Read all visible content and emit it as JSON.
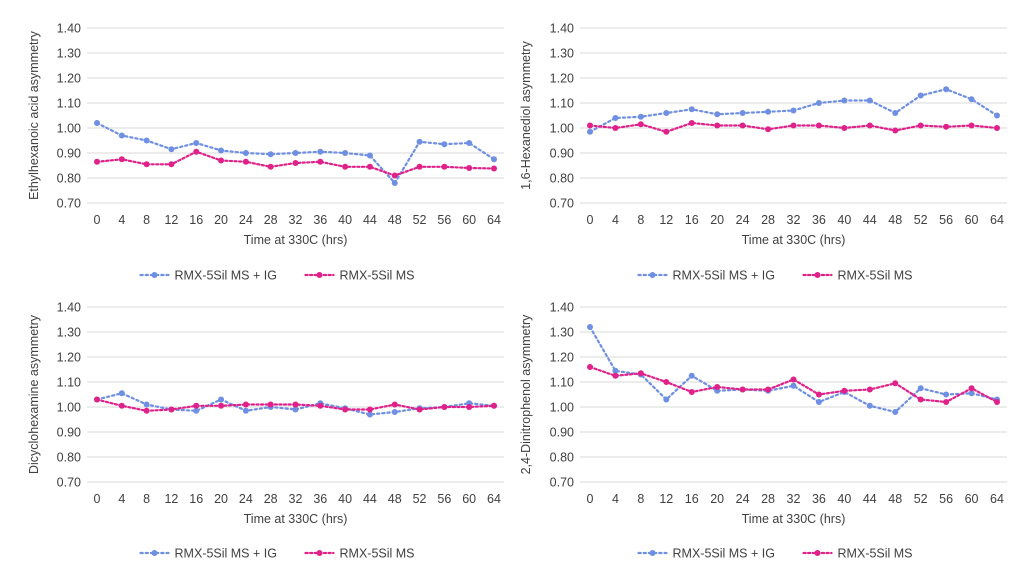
{
  "chart_data": [
    {
      "type": "line",
      "title": "",
      "xlabel": "Time at 330C (hrs)",
      "ylabel": "Ethylhexanoic acid asymmetry",
      "categories": [
        "0",
        "4",
        "8",
        "12",
        "16",
        "20",
        "24",
        "28",
        "32",
        "36",
        "40",
        "44",
        "48",
        "52",
        "56",
        "60",
        "64"
      ],
      "ylim": [
        0.7,
        1.4
      ],
      "yticks": [
        "0.70",
        "0.80",
        "0.90",
        "1.00",
        "1.10",
        "1.20",
        "1.30",
        "1.40"
      ],
      "grid": true,
      "legend": "bottom",
      "series": [
        {
          "name": "RMX-5Sil MS + IG",
          "color": "#6f8fe3",
          "values": [
            1.02,
            0.97,
            0.95,
            0.915,
            0.94,
            0.91,
            0.9,
            0.895,
            0.9,
            0.905,
            0.9,
            0.89,
            0.78,
            0.945,
            0.935,
            0.94,
            0.875
          ]
        },
        {
          "name": "RMX-5Sil MS",
          "color": "#e0218a",
          "values": [
            0.865,
            0.875,
            0.855,
            0.855,
            0.905,
            0.87,
            0.865,
            0.845,
            0.86,
            0.865,
            0.845,
            0.845,
            0.81,
            0.845,
            0.845,
            0.84,
            0.838
          ]
        }
      ]
    },
    {
      "type": "line",
      "title": "",
      "xlabel": "Time at 330C (hrs)",
      "ylabel": "1,6-Hexanediol asymmetry",
      "categories": [
        "0",
        "4",
        "8",
        "12",
        "16",
        "20",
        "24",
        "28",
        "32",
        "36",
        "40",
        "44",
        "48",
        "52",
        "56",
        "60",
        "64"
      ],
      "ylim": [
        0.7,
        1.4
      ],
      "yticks": [
        "0.70",
        "0.80",
        "0.90",
        "1.00",
        "1.10",
        "1.20",
        "1.30",
        "1.40"
      ],
      "grid": true,
      "legend": "bottom",
      "series": [
        {
          "name": "RMX-5Sil MS + IG",
          "color": "#6f8fe3",
          "values": [
            0.985,
            1.04,
            1.045,
            1.06,
            1.075,
            1.055,
            1.06,
            1.065,
            1.07,
            1.1,
            1.11,
            1.11,
            1.06,
            1.13,
            1.155,
            1.115,
            1.05
          ]
        },
        {
          "name": "RMX-5Sil MS",
          "color": "#e0218a",
          "values": [
            1.01,
            1.0,
            1.015,
            0.985,
            1.02,
            1.01,
            1.01,
            0.995,
            1.01,
            1.01,
            1.0,
            1.01,
            0.99,
            1.01,
            1.005,
            1.01,
            1.0
          ]
        }
      ]
    },
    {
      "type": "line",
      "title": "",
      "xlabel": "Time at 330C (hrs)",
      "ylabel": "Dicyclohexamine asymmetry",
      "categories": [
        "0",
        "4",
        "8",
        "12",
        "16",
        "20",
        "24",
        "28",
        "32",
        "36",
        "40",
        "44",
        "48",
        "52",
        "56",
        "60",
        "64"
      ],
      "ylim": [
        0.7,
        1.4
      ],
      "yticks": [
        "0.70",
        "0.80",
        "0.90",
        "1.00",
        "1.10",
        "1.20",
        "1.30",
        "1.40"
      ],
      "grid": true,
      "legend": "bottom",
      "series": [
        {
          "name": "RMX-5Sil MS + IG",
          "color": "#6f8fe3",
          "values": [
            1.03,
            1.055,
            1.01,
            0.99,
            0.985,
            1.03,
            0.985,
            1.0,
            0.99,
            1.015,
            0.995,
            0.97,
            0.98,
            0.995,
            1.0,
            1.015,
            1.005
          ]
        },
        {
          "name": "RMX-5Sil MS",
          "color": "#e0218a",
          "values": [
            1.03,
            1.005,
            0.985,
            0.99,
            1.005,
            1.005,
            1.01,
            1.01,
            1.01,
            1.005,
            0.99,
            0.99,
            1.01,
            0.99,
            1.0,
            1.0,
            1.005
          ]
        }
      ]
    },
    {
      "type": "line",
      "title": "",
      "xlabel": "Time at 330C (hrs)",
      "ylabel": "2,4-Dinitrophenol asymmetry",
      "categories": [
        "0",
        "4",
        "8",
        "12",
        "16",
        "20",
        "24",
        "28",
        "32",
        "36",
        "40",
        "44",
        "48",
        "52",
        "56",
        "60",
        "64"
      ],
      "ylim": [
        0.7,
        1.4
      ],
      "yticks": [
        "0.70",
        "0.80",
        "0.90",
        "1.00",
        "1.10",
        "1.20",
        "1.30",
        "1.40"
      ],
      "grid": true,
      "legend": "bottom",
      "series": [
        {
          "name": "RMX-5Sil MS + IG",
          "color": "#6f8fe3",
          "values": [
            1.32,
            1.145,
            1.13,
            1.03,
            1.125,
            1.065,
            1.07,
            1.065,
            1.085,
            1.02,
            1.06,
            1.005,
            0.98,
            1.075,
            1.05,
            1.055,
            1.03
          ]
        },
        {
          "name": "RMX-5Sil MS",
          "color": "#e0218a",
          "values": [
            1.16,
            1.125,
            1.135,
            1.1,
            1.06,
            1.08,
            1.07,
            1.07,
            1.11,
            1.05,
            1.065,
            1.07,
            1.095,
            1.03,
            1.02,
            1.075,
            1.02
          ]
        }
      ]
    }
  ]
}
